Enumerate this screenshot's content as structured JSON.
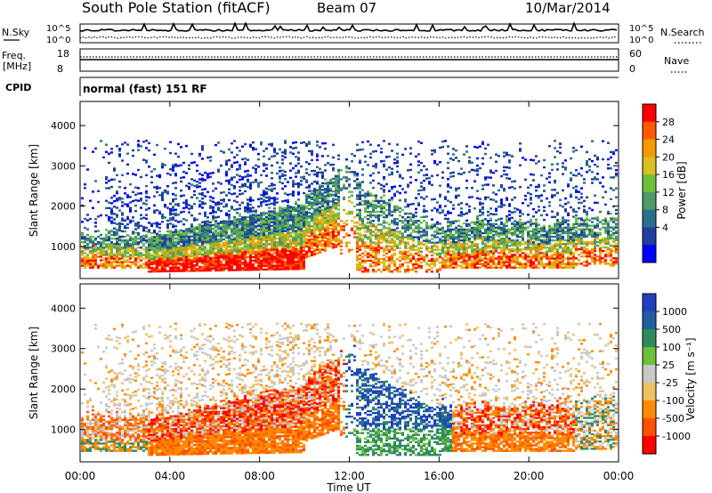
{
  "header": {
    "title": "South Pole Station (fitACF)",
    "beam": "Beam 07",
    "date": "10/Mar/2014"
  },
  "top_panels": {
    "nsky_label": "N.Sky",
    "nsearch_label": "N.Search",
    "nsky_ticks": [
      "10^5",
      "10^0"
    ],
    "nsearch_ticks": [
      "10^5",
      "10^0"
    ],
    "freq_label": "Freq.",
    "freq_unit": "[MHz]",
    "freq_ticks": [
      "18",
      "8"
    ],
    "nave_label": "Nave",
    "nave_ticks": [
      "60",
      "0"
    ],
    "cpid_label": "CPID",
    "cpid_text": "normal (fast) 151 RF"
  },
  "chart_data": [
    {
      "type": "heatmap",
      "name": "power",
      "ylabel": "Slant Range [km]",
      "y_ticks": [
        1000,
        2000,
        3000,
        4000
      ],
      "ylim": [
        200,
        4600
      ],
      "colorbar_label": "Power [dB]",
      "colorbar_ticks": [
        "28",
        "24",
        "20",
        "16",
        "12",
        "8",
        "4"
      ],
      "colors": [
        "#0000ff",
        "#1f3fa0",
        "#2b6f8c",
        "#4f9a66",
        "#6fbf3f",
        "#d8c020",
        "#f39a00",
        "#ff5a00",
        "#ff0000"
      ]
    },
    {
      "type": "heatmap",
      "name": "velocity",
      "ylabel": "Slant Range [km]",
      "y_ticks": [
        1000,
        2000,
        3000,
        4000
      ],
      "ylim": [
        200,
        4600
      ],
      "colorbar_label": "Velocity [m s⁻¹]",
      "colorbar_ticks": [
        "1000",
        "500",
        "100",
        "25",
        "-25",
        "-100",
        "-500",
        "-1000"
      ],
      "colors": [
        "#2040c0",
        "#1f5fa0",
        "#2f8a60",
        "#6cc03a",
        "#c8c8c8",
        "#f0c060",
        "#ff8a00",
        "#ff5000",
        "#ff0000"
      ]
    }
  ],
  "x_axis": {
    "label": "Time UT",
    "ticks": [
      "00:00",
      "04:00",
      "08:00",
      "12:00",
      "16:00",
      "20:00",
      "00:00"
    ]
  }
}
